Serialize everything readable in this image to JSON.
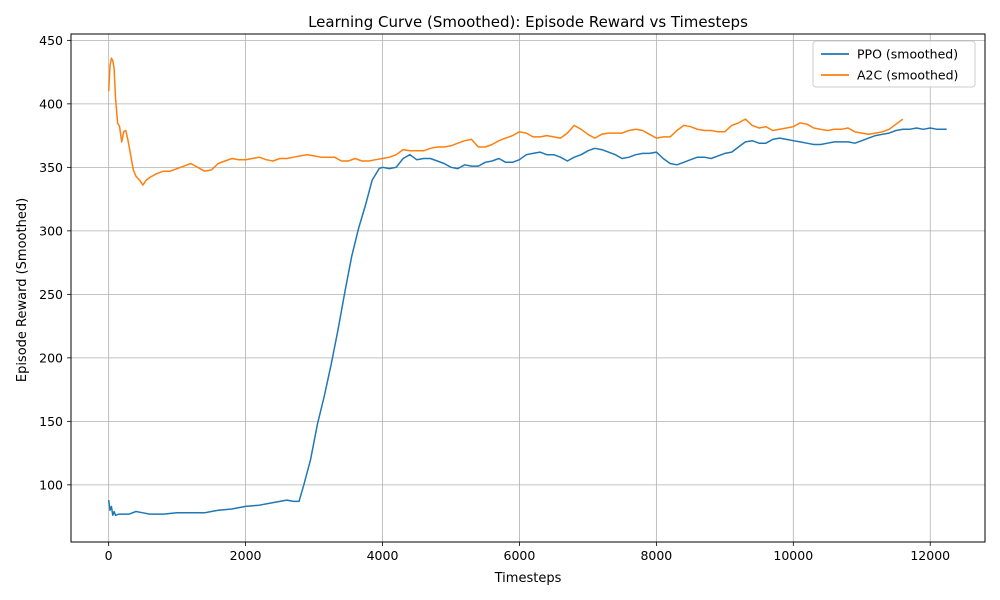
{
  "chart_data": {
    "type": "line",
    "title": "Learning Curve (Smoothed): Episode Reward vs Timesteps",
    "xlabel": "Timesteps",
    "ylabel": "Episode Reward (Smoothed)",
    "xlim": [
      -550,
      12800
    ],
    "ylim": [
      55,
      455
    ],
    "xticks": [
      0,
      2000,
      4000,
      6000,
      8000,
      10000,
      12000
    ],
    "yticks": [
      100,
      150,
      200,
      250,
      300,
      350,
      400,
      450
    ],
    "grid": true,
    "legend_position": "top-right",
    "series": [
      {
        "name": "PPO (smoothed)",
        "color": "#1f77b4",
        "points": [
          [
            0,
            88
          ],
          [
            20,
            80
          ],
          [
            40,
            83
          ],
          [
            60,
            76
          ],
          [
            80,
            79
          ],
          [
            100,
            76
          ],
          [
            150,
            77
          ],
          [
            200,
            77
          ],
          [
            300,
            77
          ],
          [
            400,
            79
          ],
          [
            500,
            78
          ],
          [
            600,
            77
          ],
          [
            800,
            77
          ],
          [
            1000,
            78
          ],
          [
            1200,
            78
          ],
          [
            1400,
            78
          ],
          [
            1500,
            79
          ],
          [
            1600,
            80
          ],
          [
            1800,
            81
          ],
          [
            2000,
            83
          ],
          [
            2200,
            84
          ],
          [
            2400,
            86
          ],
          [
            2600,
            88
          ],
          [
            2700,
            87
          ],
          [
            2780,
            87
          ],
          [
            2850,
            100
          ],
          [
            2950,
            120
          ],
          [
            3050,
            148
          ],
          [
            3150,
            170
          ],
          [
            3250,
            195
          ],
          [
            3350,
            222
          ],
          [
            3450,
            252
          ],
          [
            3550,
            280
          ],
          [
            3650,
            302
          ],
          [
            3750,
            320
          ],
          [
            3850,
            340
          ],
          [
            3950,
            349
          ],
          [
            4000,
            350
          ],
          [
            4100,
            349
          ],
          [
            4200,
            350
          ],
          [
            4300,
            357
          ],
          [
            4400,
            360
          ],
          [
            4500,
            356
          ],
          [
            4600,
            357
          ],
          [
            4700,
            357
          ],
          [
            4800,
            355
          ],
          [
            4900,
            353
          ],
          [
            5000,
            350
          ],
          [
            5100,
            349
          ],
          [
            5200,
            352
          ],
          [
            5300,
            351
          ],
          [
            5400,
            351
          ],
          [
            5500,
            354
          ],
          [
            5600,
            355
          ],
          [
            5700,
            357
          ],
          [
            5800,
            354
          ],
          [
            5900,
            354
          ],
          [
            6000,
            356
          ],
          [
            6100,
            360
          ],
          [
            6200,
            361
          ],
          [
            6300,
            362
          ],
          [
            6400,
            360
          ],
          [
            6500,
            360
          ],
          [
            6600,
            358
          ],
          [
            6700,
            355
          ],
          [
            6800,
            358
          ],
          [
            6900,
            360
          ],
          [
            7000,
            363
          ],
          [
            7100,
            365
          ],
          [
            7200,
            364
          ],
          [
            7300,
            362
          ],
          [
            7400,
            360
          ],
          [
            7500,
            357
          ],
          [
            7600,
            358
          ],
          [
            7700,
            360
          ],
          [
            7800,
            361
          ],
          [
            7900,
            361
          ],
          [
            8000,
            362
          ],
          [
            8100,
            357
          ],
          [
            8200,
            353
          ],
          [
            8300,
            352
          ],
          [
            8400,
            354
          ],
          [
            8500,
            356
          ],
          [
            8600,
            358
          ],
          [
            8700,
            358
          ],
          [
            8800,
            357
          ],
          [
            8900,
            359
          ],
          [
            9000,
            361
          ],
          [
            9100,
            362
          ],
          [
            9200,
            366
          ],
          [
            9300,
            370
          ],
          [
            9400,
            371
          ],
          [
            9500,
            369
          ],
          [
            9600,
            369
          ],
          [
            9700,
            372
          ],
          [
            9800,
            373
          ],
          [
            9900,
            372
          ],
          [
            10000,
            371
          ],
          [
            10100,
            370
          ],
          [
            10200,
            369
          ],
          [
            10300,
            368
          ],
          [
            10400,
            368
          ],
          [
            10500,
            369
          ],
          [
            10600,
            370
          ],
          [
            10700,
            370
          ],
          [
            10800,
            370
          ],
          [
            10900,
            369
          ],
          [
            11000,
            371
          ],
          [
            11100,
            373
          ],
          [
            11200,
            375
          ],
          [
            11300,
            376
          ],
          [
            11400,
            377
          ],
          [
            11500,
            379
          ],
          [
            11600,
            380
          ],
          [
            11700,
            380
          ],
          [
            11800,
            381
          ],
          [
            11900,
            380
          ],
          [
            12000,
            381
          ],
          [
            12100,
            380
          ],
          [
            12240,
            380
          ]
        ]
      },
      {
        "name": "A2C (smoothed)",
        "color": "#ff7f0e",
        "points": [
          [
            0,
            410
          ],
          [
            20,
            430
          ],
          [
            40,
            436
          ],
          [
            60,
            434
          ],
          [
            80,
            428
          ],
          [
            100,
            405
          ],
          [
            130,
            385
          ],
          [
            160,
            382
          ],
          [
            190,
            370
          ],
          [
            220,
            378
          ],
          [
            250,
            379
          ],
          [
            280,
            372
          ],
          [
            320,
            360
          ],
          [
            360,
            348
          ],
          [
            400,
            343
          ],
          [
            450,
            340
          ],
          [
            500,
            336
          ],
          [
            550,
            340
          ],
          [
            600,
            342
          ],
          [
            700,
            345
          ],
          [
            800,
            347
          ],
          [
            900,
            347
          ],
          [
            1000,
            349
          ],
          [
            1100,
            351
          ],
          [
            1200,
            353
          ],
          [
            1300,
            350
          ],
          [
            1400,
            347
          ],
          [
            1500,
            348
          ],
          [
            1600,
            353
          ],
          [
            1700,
            355
          ],
          [
            1800,
            357
          ],
          [
            1900,
            356
          ],
          [
            2000,
            356
          ],
          [
            2100,
            357
          ],
          [
            2200,
            358
          ],
          [
            2300,
            356
          ],
          [
            2400,
            355
          ],
          [
            2500,
            357
          ],
          [
            2600,
            357
          ],
          [
            2700,
            358
          ],
          [
            2800,
            359
          ],
          [
            2900,
            360
          ],
          [
            3000,
            359
          ],
          [
            3100,
            358
          ],
          [
            3200,
            358
          ],
          [
            3300,
            358
          ],
          [
            3400,
            355
          ],
          [
            3500,
            355
          ],
          [
            3600,
            357
          ],
          [
            3700,
            355
          ],
          [
            3800,
            355
          ],
          [
            3900,
            356
          ],
          [
            4000,
            357
          ],
          [
            4100,
            358
          ],
          [
            4200,
            360
          ],
          [
            4300,
            364
          ],
          [
            4400,
            363
          ],
          [
            4500,
            363
          ],
          [
            4600,
            363
          ],
          [
            4700,
            365
          ],
          [
            4800,
            366
          ],
          [
            4900,
            366
          ],
          [
            5000,
            367
          ],
          [
            5100,
            369
          ],
          [
            5200,
            371
          ],
          [
            5300,
            372
          ],
          [
            5400,
            366
          ],
          [
            5500,
            366
          ],
          [
            5600,
            368
          ],
          [
            5700,
            371
          ],
          [
            5800,
            373
          ],
          [
            5900,
            375
          ],
          [
            6000,
            378
          ],
          [
            6100,
            377
          ],
          [
            6200,
            374
          ],
          [
            6300,
            374
          ],
          [
            6400,
            375
          ],
          [
            6500,
            374
          ],
          [
            6600,
            373
          ],
          [
            6700,
            377
          ],
          [
            6800,
            383
          ],
          [
            6900,
            380
          ],
          [
            7000,
            376
          ],
          [
            7100,
            373
          ],
          [
            7200,
            376
          ],
          [
            7300,
            377
          ],
          [
            7400,
            377
          ],
          [
            7500,
            377
          ],
          [
            7600,
            379
          ],
          [
            7700,
            380
          ],
          [
            7800,
            379
          ],
          [
            7900,
            376
          ],
          [
            8000,
            373
          ],
          [
            8100,
            374
          ],
          [
            8200,
            374
          ],
          [
            8300,
            379
          ],
          [
            8400,
            383
          ],
          [
            8500,
            382
          ],
          [
            8600,
            380
          ],
          [
            8700,
            379
          ],
          [
            8800,
            379
          ],
          [
            8900,
            378
          ],
          [
            9000,
            378
          ],
          [
            9100,
            383
          ],
          [
            9200,
            385
          ],
          [
            9300,
            388
          ],
          [
            9400,
            383
          ],
          [
            9500,
            381
          ],
          [
            9600,
            382
          ],
          [
            9700,
            379
          ],
          [
            9800,
            380
          ],
          [
            9900,
            381
          ],
          [
            10000,
            382
          ],
          [
            10100,
            385
          ],
          [
            10200,
            384
          ],
          [
            10300,
            381
          ],
          [
            10400,
            380
          ],
          [
            10500,
            379
          ],
          [
            10600,
            380
          ],
          [
            10700,
            380
          ],
          [
            10800,
            381
          ],
          [
            10900,
            378
          ],
          [
            11000,
            377
          ],
          [
            11100,
            376
          ],
          [
            11200,
            377
          ],
          [
            11300,
            378
          ],
          [
            11400,
            380
          ],
          [
            11500,
            384
          ],
          [
            11600,
            388
          ]
        ]
      }
    ]
  }
}
